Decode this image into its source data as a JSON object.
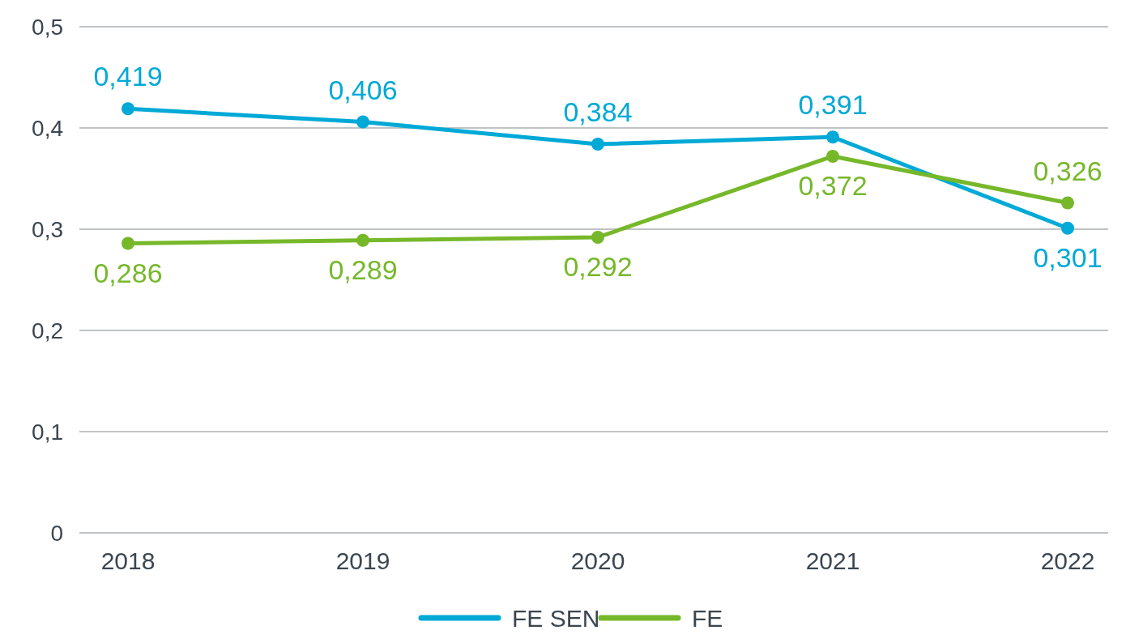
{
  "chart_data": {
    "type": "line",
    "categories": [
      "2018",
      "2019",
      "2020",
      "2021",
      "2022"
    ],
    "series": [
      {
        "name": "FE SEN",
        "color": "#00a9d6",
        "values": [
          0.419,
          0.406,
          0.384,
          0.391,
          0.301
        ],
        "value_labels": [
          "0,419",
          "0,406",
          "0,384",
          "0,391",
          "0,301"
        ]
      },
      {
        "name": "FE",
        "color": "#76b82a",
        "values": [
          0.286,
          0.289,
          0.292,
          0.372,
          0.326
        ],
        "value_labels": [
          "0,286",
          "0,289",
          "0,292",
          "0,372",
          "0,326"
        ]
      }
    ],
    "ylim": [
      0,
      0.5
    ],
    "yticks": [
      0,
      {
        "value": 0.1,
        "label": "0,1"
      },
      {
        "value": 0.2,
        "label": "0,2"
      },
      {
        "value": 0.3,
        "label": "0,3"
      },
      {
        "value": 0.4,
        "label": "0,4"
      },
      {
        "value": 0.5,
        "label": "0,5"
      }
    ],
    "grid": "y",
    "legend": "bottom",
    "marker": "circle",
    "line_style": "solid"
  }
}
